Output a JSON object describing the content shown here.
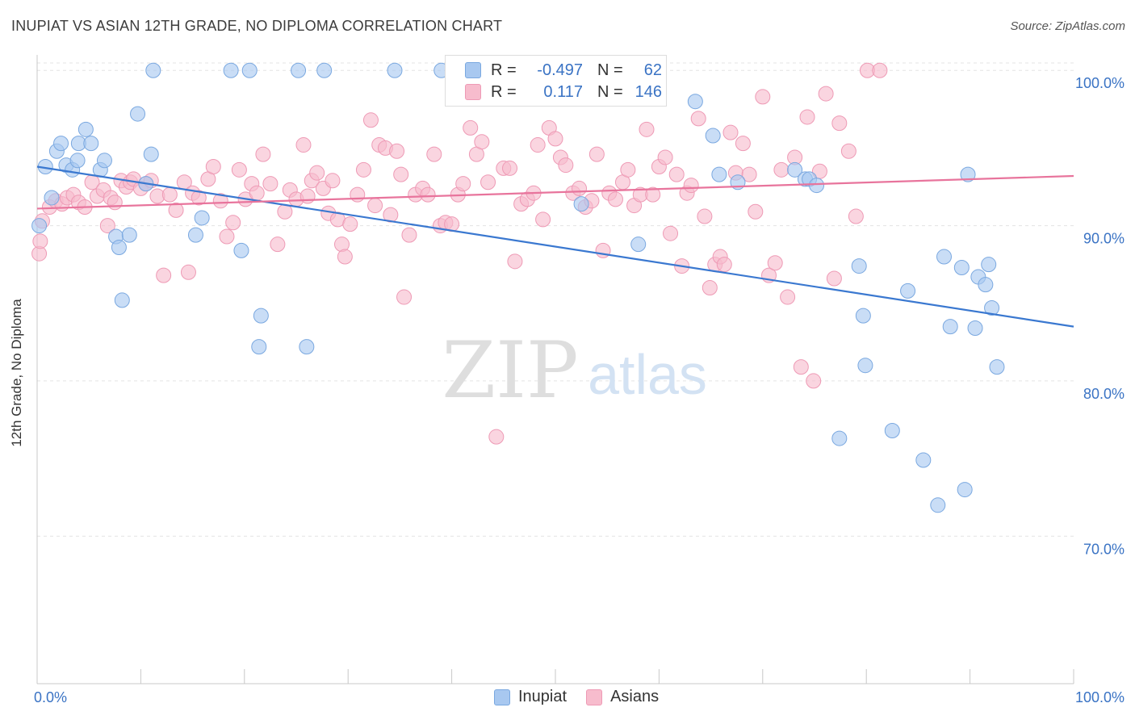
{
  "title": "INUPIAT VS ASIAN 12TH GRADE, NO DIPLOMA CORRELATION CHART",
  "source": "Source: ZipAtlas.com",
  "watermark": {
    "zip": "ZIP",
    "atlas": "atlas"
  },
  "legend_top": [
    {
      "r_label": "R =",
      "r_value": "-0.497",
      "n_label": "N =",
      "n_value": "62"
    },
    {
      "r_label": "R =",
      "r_value": "0.117",
      "n_label": "N =",
      "n_value": "146"
    }
  ],
  "legend_bottom": [
    "Inupiat",
    "Asians"
  ],
  "chart_data": {
    "type": "scatter",
    "title": "INUPIAT VS ASIAN 12TH GRADE, NO DIPLOMA CORRELATION CHART",
    "xlabel": "",
    "ylabel": "12th Grade, No Diploma",
    "xlim": [
      0,
      100
    ],
    "ylim": [
      60.5,
      101
    ],
    "x_tick_labels": [
      "0.0%",
      "100.0%"
    ],
    "y_ticks": [
      {
        "value": 100,
        "label": "100.0%"
      },
      {
        "value": 90,
        "label": "90.0%"
      },
      {
        "value": 80,
        "label": "80.0%"
      },
      {
        "value": 70,
        "label": "70.0%"
      }
    ],
    "grid": true,
    "legend_position": "top-center",
    "colors": {
      "inupiat_fill": "#a8c8f0",
      "inupiat_stroke": "#7aa8e0",
      "inupiat_line": "#3a78d0",
      "asians_fill": "#f7bccd",
      "asians_stroke": "#ee9ab5",
      "asians_line": "#e8749c",
      "tick_label": "#3a73c4"
    },
    "series": [
      {
        "name": "Inupiat",
        "r": -0.497,
        "n": 62,
        "trend": {
          "x": [
            0,
            100
          ],
          "y": [
            93.8,
            83.5
          ]
        },
        "points": [
          [
            0.2,
            90
          ],
          [
            0.8,
            93.8
          ],
          [
            1.4,
            91.8
          ],
          [
            1.9,
            94.8
          ],
          [
            2.3,
            95.3
          ],
          [
            2.8,
            93.9
          ],
          [
            3.4,
            93.6
          ],
          [
            3.9,
            94.2
          ],
          [
            4.0,
            95.3
          ],
          [
            4.7,
            96.2
          ],
          [
            5.2,
            95.3
          ],
          [
            6.1,
            93.6
          ],
          [
            6.5,
            94.2
          ],
          [
            7.6,
            89.3
          ],
          [
            7.9,
            88.6
          ],
          [
            8.2,
            85.2
          ],
          [
            8.9,
            89.4
          ],
          [
            9.7,
            97.2
          ],
          [
            10.5,
            92.7
          ],
          [
            11.0,
            94.6
          ],
          [
            11.2,
            100
          ],
          [
            15.3,
            89.4
          ],
          [
            15.9,
            90.5
          ],
          [
            18.7,
            100
          ],
          [
            19.7,
            88.4
          ],
          [
            20.5,
            100
          ],
          [
            21.4,
            82.2
          ],
          [
            21.6,
            84.2
          ],
          [
            25.2,
            100
          ],
          [
            26.0,
            82.2
          ],
          [
            27.7,
            100
          ],
          [
            34.5,
            100
          ],
          [
            39.0,
            100
          ],
          [
            52.5,
            91.4
          ],
          [
            58.0,
            88.8
          ],
          [
            63.5,
            98.0
          ],
          [
            65.2,
            95.8
          ],
          [
            65.8,
            93.3
          ],
          [
            67.6,
            92.8
          ],
          [
            73.1,
            93.6
          ],
          [
            74.1,
            93.0
          ],
          [
            74.5,
            93.0
          ],
          [
            75.2,
            92.6
          ],
          [
            77.4,
            76.3
          ],
          [
            79.3,
            87.4
          ],
          [
            79.7,
            84.2
          ],
          [
            79.9,
            81.0
          ],
          [
            82.5,
            76.8
          ],
          [
            84.0,
            85.8
          ],
          [
            85.5,
            74.9
          ],
          [
            86.9,
            72.0
          ],
          [
            87.5,
            88.0
          ],
          [
            88.1,
            83.5
          ],
          [
            89.2,
            87.3
          ],
          [
            89.5,
            73.0
          ],
          [
            89.8,
            93.3
          ],
          [
            90.5,
            83.4
          ],
          [
            90.8,
            86.7
          ],
          [
            91.5,
            86.2
          ],
          [
            91.8,
            87.5
          ],
          [
            92.1,
            84.7
          ],
          [
            92.6,
            80.9
          ]
        ]
      },
      {
        "name": "Asians",
        "r": 0.117,
        "n": 146,
        "trend": {
          "x": [
            0,
            100
          ],
          "y": [
            91.1,
            93.2
          ]
        },
        "points": [
          [
            0.2,
            88.2
          ],
          [
            0.3,
            89.0
          ],
          [
            0.5,
            90.3
          ],
          [
            1.2,
            91.2
          ],
          [
            1.8,
            91.6
          ],
          [
            2.4,
            91.4
          ],
          [
            2.9,
            91.8
          ],
          [
            3.5,
            92.0
          ],
          [
            4.0,
            91.5
          ],
          [
            4.6,
            91.2
          ],
          [
            5.3,
            92.8
          ],
          [
            5.8,
            91.9
          ],
          [
            6.4,
            92.3
          ],
          [
            6.8,
            90.0
          ],
          [
            7.1,
            91.8
          ],
          [
            7.5,
            91.5
          ],
          [
            8.1,
            92.9
          ],
          [
            8.6,
            92.5
          ],
          [
            9.0,
            92.8
          ],
          [
            9.3,
            93.0
          ],
          [
            10.0,
            92.4
          ],
          [
            10.5,
            92.7
          ],
          [
            11.0,
            92.9
          ],
          [
            11.6,
            91.9
          ],
          [
            12.2,
            86.8
          ],
          [
            12.8,
            92.0
          ],
          [
            13.4,
            91.0
          ],
          [
            14.2,
            92.8
          ],
          [
            14.6,
            87.0
          ],
          [
            15.0,
            92.1
          ],
          [
            15.6,
            91.8
          ],
          [
            16.5,
            93.0
          ],
          [
            17.0,
            93.8
          ],
          [
            17.7,
            91.6
          ],
          [
            18.3,
            89.3
          ],
          [
            18.9,
            90.2
          ],
          [
            19.5,
            93.6
          ],
          [
            20.1,
            91.7
          ],
          [
            20.7,
            92.7
          ],
          [
            21.2,
            92.1
          ],
          [
            21.8,
            94.6
          ],
          [
            22.5,
            92.7
          ],
          [
            23.2,
            88.8
          ],
          [
            23.9,
            90.9
          ],
          [
            24.4,
            92.3
          ],
          [
            25.0,
            91.7
          ],
          [
            25.7,
            95.2
          ],
          [
            26.1,
            91.9
          ],
          [
            26.5,
            92.9
          ],
          [
            27.0,
            93.4
          ],
          [
            27.6,
            92.4
          ],
          [
            28.1,
            90.8
          ],
          [
            28.5,
            92.9
          ],
          [
            29.0,
            90.4
          ],
          [
            29.4,
            88.8
          ],
          [
            29.7,
            88.0
          ],
          [
            30.2,
            90.1
          ],
          [
            30.9,
            92.0
          ],
          [
            31.5,
            93.6
          ],
          [
            32.2,
            96.8
          ],
          [
            32.6,
            91.3
          ],
          [
            33.0,
            95.2
          ],
          [
            33.6,
            95.0
          ],
          [
            34.1,
            90.7
          ],
          [
            34.7,
            94.8
          ],
          [
            35.1,
            93.3
          ],
          [
            35.4,
            85.4
          ],
          [
            35.9,
            89.4
          ],
          [
            36.5,
            92.0
          ],
          [
            37.2,
            92.4
          ],
          [
            37.7,
            92.0
          ],
          [
            38.3,
            94.6
          ],
          [
            38.9,
            90.0
          ],
          [
            39.4,
            90.2
          ],
          [
            40.0,
            90.1
          ],
          [
            40.6,
            92.0
          ],
          [
            41.1,
            92.7
          ],
          [
            41.8,
            96.3
          ],
          [
            42.4,
            94.6
          ],
          [
            42.9,
            95.4
          ],
          [
            43.5,
            92.8
          ],
          [
            44.3,
            76.4
          ],
          [
            45.0,
            93.7
          ],
          [
            45.6,
            93.7
          ],
          [
            46.1,
            87.7
          ],
          [
            46.7,
            91.4
          ],
          [
            47.3,
            91.7
          ],
          [
            47.9,
            92.1
          ],
          [
            48.3,
            95.2
          ],
          [
            48.8,
            90.4
          ],
          [
            49.4,
            96.3
          ],
          [
            50.0,
            95.6
          ],
          [
            50.5,
            94.4
          ],
          [
            51.0,
            93.9
          ],
          [
            51.7,
            92.1
          ],
          [
            52.3,
            92.4
          ],
          [
            52.9,
            91.2
          ],
          [
            53.5,
            91.6
          ],
          [
            54.0,
            94.6
          ],
          [
            54.6,
            88.4
          ],
          [
            55.2,
            92.1
          ],
          [
            55.8,
            91.7
          ],
          [
            56.5,
            92.8
          ],
          [
            57.0,
            93.6
          ],
          [
            57.6,
            91.3
          ],
          [
            58.2,
            92.0
          ],
          [
            58.8,
            96.2
          ],
          [
            59.4,
            92.0
          ],
          [
            60.0,
            93.8
          ],
          [
            60.6,
            94.4
          ],
          [
            61.1,
            89.5
          ],
          [
            61.7,
            93.3
          ],
          [
            62.2,
            87.4
          ],
          [
            62.7,
            92.1
          ],
          [
            63.1,
            92.6
          ],
          [
            63.8,
            96.9
          ],
          [
            64.4,
            90.6
          ],
          [
            64.9,
            86.0
          ],
          [
            65.4,
            87.5
          ],
          [
            65.9,
            88.0
          ],
          [
            66.3,
            87.5
          ],
          [
            66.9,
            96.0
          ],
          [
            67.4,
            93.4
          ],
          [
            68.1,
            95.3
          ],
          [
            68.7,
            93.3
          ],
          [
            69.3,
            90.9
          ],
          [
            70.0,
            98.3
          ],
          [
            70.6,
            86.8
          ],
          [
            71.2,
            87.6
          ],
          [
            71.8,
            93.6
          ],
          [
            72.4,
            85.4
          ],
          [
            73.1,
            94.4
          ],
          [
            73.7,
            80.9
          ],
          [
            74.3,
            97.0
          ],
          [
            74.9,
            80.0
          ],
          [
            75.5,
            93.5
          ],
          [
            76.1,
            98.5
          ],
          [
            76.9,
            86.6
          ],
          [
            77.4,
            96.6
          ],
          [
            78.3,
            94.8
          ],
          [
            79.0,
            90.6
          ],
          [
            80.1,
            100
          ],
          [
            81.3,
            100
          ]
        ]
      }
    ]
  }
}
